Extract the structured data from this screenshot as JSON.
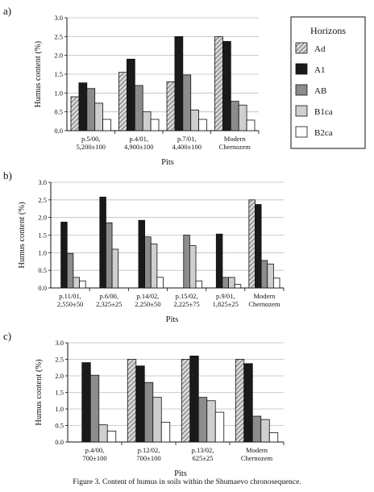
{
  "caption": "Figure 3. Content of humus in soils within the Shumaevo chronosequence.",
  "legend": {
    "title": "Horizons",
    "items": [
      {
        "name": "Ad",
        "fill": "hatch"
      },
      {
        "name": "A1",
        "fill": "#1a1a1a"
      },
      {
        "name": "AB",
        "fill": "#8c8c8c"
      },
      {
        "name": "B1ca",
        "fill": "#cfcfcf"
      },
      {
        "name": "B2ca",
        "fill": "#ffffff"
      }
    ]
  },
  "chart_data": [
    {
      "panel_label": "a)",
      "type": "bar",
      "xlabel": "Pits",
      "ylabel": "Humus content  (%)",
      "ylim": [
        0,
        3.0
      ],
      "yticks": [
        "0.0",
        "0.5",
        "1.0",
        "1.5",
        "2.0",
        "2.5",
        "3.0"
      ],
      "categories": [
        [
          "p.5/00,",
          "5,200±100"
        ],
        [
          "p.4/01,",
          "4,900±100"
        ],
        [
          "p.7/01,",
          "4,400±100"
        ],
        [
          "Modern",
          "Chernozem"
        ]
      ],
      "series": [
        {
          "name": "Ad",
          "values": [
            0.9,
            1.55,
            1.3,
            2.5
          ]
        },
        {
          "name": "A1",
          "values": [
            1.27,
            1.9,
            2.5,
            2.37
          ]
        },
        {
          "name": "AB",
          "values": [
            1.12,
            1.2,
            1.48,
            0.78
          ]
        },
        {
          "name": "B1ca",
          "values": [
            0.73,
            0.5,
            0.55,
            0.68
          ]
        },
        {
          "name": "B2ca",
          "values": [
            0.3,
            0.3,
            0.3,
            0.28
          ]
        }
      ]
    },
    {
      "panel_label": "b)",
      "type": "bar",
      "xlabel": "Pits",
      "ylabel": "Humus content  (%)",
      "ylim": [
        0,
        3.0
      ],
      "yticks": [
        "0.0",
        "0.5",
        "1.0",
        "1.5",
        "2.0",
        "2.5",
        "3.0"
      ],
      "categories": [
        [
          "p.11/01,",
          "2,550±50"
        ],
        [
          "p.6/00,",
          "2,325±25"
        ],
        [
          "p.14/02,",
          "2,250±50"
        ],
        [
          "p.15/02,",
          "2,225±75"
        ],
        [
          "p.9/01,",
          "1,825±25"
        ],
        [
          "Modern",
          "Chernozem"
        ]
      ],
      "series": [
        {
          "name": "Ad",
          "values": [
            null,
            null,
            null,
            null,
            null,
            2.5
          ]
        },
        {
          "name": "A1",
          "values": [
            1.87,
            2.58,
            1.92,
            null,
            1.53,
            2.37
          ]
        },
        {
          "name": "AB",
          "values": [
            0.98,
            1.85,
            1.45,
            1.5,
            0.3,
            0.78
          ]
        },
        {
          "name": "B1ca",
          "values": [
            0.3,
            1.1,
            1.25,
            1.2,
            0.3,
            0.68
          ]
        },
        {
          "name": "B2ca",
          "values": [
            0.2,
            null,
            0.3,
            0.2,
            0.1,
            0.28
          ]
        }
      ]
    },
    {
      "panel_label": "c)",
      "type": "bar",
      "xlabel": "Pits",
      "ylabel": "Humus content  (%)",
      "ylim": [
        0,
        3.0
      ],
      "yticks": [
        "0.0",
        "0.5",
        "1.0",
        "1.5",
        "2.0",
        "2.5",
        "3.0"
      ],
      "categories": [
        [
          "p.4/00,",
          "700±100"
        ],
        [
          "p.12/02,",
          "700±100"
        ],
        [
          "p.13/02,",
          "625±25"
        ],
        [
          "Modern",
          "Chernozem"
        ]
      ],
      "series": [
        {
          "name": "Ad",
          "values": [
            null,
            2.5,
            2.5,
            2.5
          ]
        },
        {
          "name": "A1",
          "values": [
            2.4,
            2.3,
            2.6,
            2.37
          ]
        },
        {
          "name": "AB",
          "values": [
            2.02,
            1.8,
            1.35,
            0.78
          ]
        },
        {
          "name": "B1ca",
          "values": [
            0.52,
            1.35,
            1.25,
            0.68
          ]
        },
        {
          "name": "B2ca",
          "values": [
            0.33,
            0.6,
            0.9,
            0.28
          ]
        }
      ]
    }
  ]
}
